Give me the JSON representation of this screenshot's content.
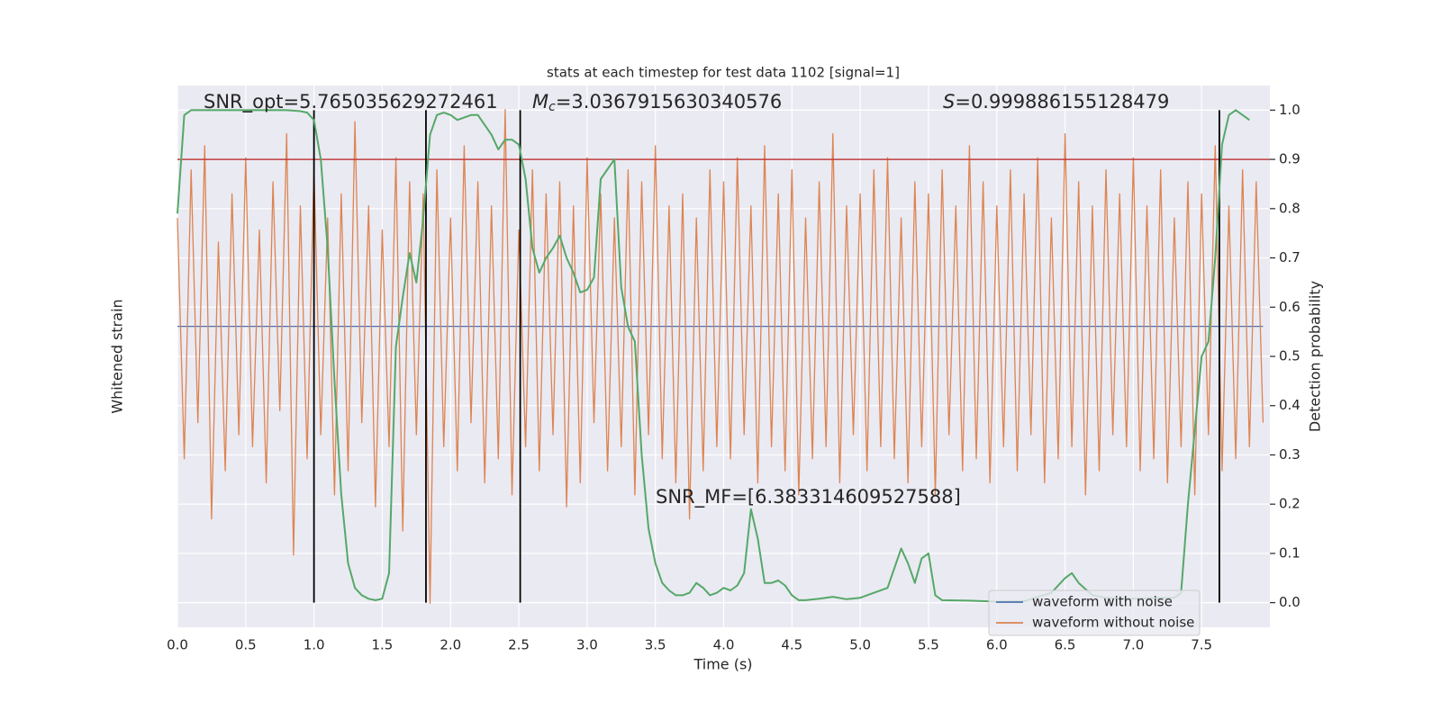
{
  "chart_data": {
    "type": "line",
    "title": "stats at each timestep for test data 1102 [signal=1]",
    "xlabel": "Time (s)",
    "ylabel": "Whitened strain",
    "y2label": "Detection probability",
    "xlim": [
      0,
      8
    ],
    "xticks": [
      {
        "value": 0,
        "label": "0.0"
      },
      0.5,
      {
        "value": 1,
        "label": "1.0"
      },
      1.5,
      {
        "value": 2,
        "label": "2.0"
      },
      2.5,
      {
        "value": 3,
        "label": "3.0"
      },
      3.5,
      {
        "value": 4,
        "label": "4.0"
      },
      4.5,
      {
        "value": 5,
        "label": "5.0"
      },
      5.5,
      {
        "value": 6,
        "label": "6.0"
      },
      6.5,
      {
        "value": 7,
        "label": "7.0"
      },
      7.5
    ],
    "ylim": [
      -2.5,
      2.0
    ],
    "y2lim": [
      -0.05,
      1.05
    ],
    "y2ticks": [
      {
        "value": 0,
        "label": "0.0"
      },
      0.1,
      0.2,
      0.3,
      0.4,
      0.5,
      0.6,
      0.7,
      0.8,
      0.9,
      {
        "value": 1,
        "label": "1.0"
      }
    ],
    "grid": true,
    "legend": "lower right",
    "x": [
      0,
      0.05,
      0.1,
      0.15,
      0.2,
      0.25,
      0.3,
      0.35,
      0.4,
      0.45,
      0.5,
      0.55,
      0.6,
      0.65,
      0.7,
      0.75,
      0.8,
      0.85,
      0.9,
      0.95,
      1,
      1.05,
      1.1,
      1.15,
      1.2,
      1.25,
      1.3,
      1.35,
      1.4,
      1.45,
      1.5,
      1.55,
      1.6,
      1.65,
      1.7,
      1.75,
      1.8,
      1.85,
      1.9,
      1.95,
      2,
      2.05,
      2.1,
      2.15,
      2.2,
      2.25,
      2.3,
      2.35,
      2.4,
      2.45,
      2.5,
      2.55,
      2.6,
      2.65,
      2.7,
      2.75,
      2.8,
      2.85,
      2.9,
      2.95,
      3,
      3.05,
      3.1,
      3.15,
      3.2,
      3.25,
      3.3,
      3.35,
      3.4,
      3.45,
      3.5,
      3.55,
      3.6,
      3.65,
      3.7,
      3.75,
      3.8,
      3.85,
      3.9,
      3.95,
      4,
      4.05,
      4.1,
      4.15,
      4.2,
      4.25,
      4.3,
      4.35,
      4.4,
      4.45,
      4.5,
      4.55,
      4.6,
      4.65,
      4.7,
      4.75,
      4.8,
      4.85,
      4.9,
      4.95,
      5,
      5.05,
      5.1,
      5.15,
      5.2,
      5.25,
      5.3,
      5.35,
      5.4,
      5.45,
      5.5,
      5.55,
      5.6,
      5.65,
      5.7,
      5.75,
      5.8,
      5.85,
      5.9,
      5.95,
      6,
      6.05,
      6.1,
      6.15,
      6.2,
      6.25,
      6.3,
      6.35,
      6.4,
      6.45,
      6.5,
      6.55,
      6.6,
      6.65,
      6.7,
      6.75,
      6.8,
      6.85,
      6.9,
      6.95,
      7,
      7.05,
      7.1,
      7.15,
      7.2,
      7.25,
      7.3,
      7.35,
      7.4,
      7.45,
      7.5,
      7.55,
      7.6,
      7.65,
      7.7,
      7.75,
      7.8,
      7.85,
      7.9,
      7.95
    ],
    "series": [
      {
        "name": "waveform with noise",
        "color": "#4c72b0",
        "values": [
          0,
          0,
          0,
          0,
          0,
          0,
          0,
          0,
          0,
          0,
          0,
          0,
          0,
          0,
          0,
          0,
          0,
          0,
          0,
          0,
          0,
          0,
          0,
          0,
          0,
          0,
          0,
          0,
          0,
          0,
          0,
          0,
          0,
          0,
          0,
          0,
          0,
          0,
          0,
          0,
          0,
          0,
          0,
          0,
          0,
          0,
          0,
          0,
          0,
          0,
          0,
          0,
          0,
          0,
          0,
          0,
          0,
          0,
          0,
          0,
          0,
          0,
          0,
          0,
          0,
          0,
          0,
          0,
          0,
          0,
          0,
          0,
          0,
          0,
          0,
          0,
          0,
          0,
          0,
          0,
          0,
          0,
          0,
          0,
          0,
          0,
          0,
          0,
          0,
          0,
          0,
          0,
          0,
          0,
          0,
          0,
          0,
          0,
          0,
          0,
          0,
          0,
          0,
          0,
          0,
          0,
          0,
          0,
          0,
          0,
          0,
          0,
          0,
          0,
          0,
          0,
          0,
          0,
          0,
          0,
          0,
          0,
          0,
          0,
          0,
          0,
          0,
          0,
          0,
          0,
          0,
          0,
          0,
          0,
          0,
          0,
          0,
          0,
          0,
          0,
          0,
          0,
          0,
          0,
          0,
          0,
          0,
          0,
          0,
          0,
          0,
          0,
          0,
          0,
          0,
          0,
          0,
          0,
          0,
          0
        ]
      },
      {
        "name": "waveform without noise",
        "color": "#dd8452",
        "values": [
          0.9,
          -1.1,
          1.3,
          -0.8,
          1.5,
          -1.6,
          0.7,
          -1.2,
          1.1,
          -0.9,
          1.4,
          -1.0,
          0.8,
          -1.3,
          1.2,
          -0.7,
          1.6,
          -1.9,
          1.0,
          -1.1,
          1.3,
          -0.9,
          0.9,
          -1.4,
          1.1,
          -1.2,
          1.7,
          -0.8,
          1.0,
          -1.5,
          0.8,
          -1.0,
          1.4,
          -1.7,
          1.2,
          -0.9,
          1.1,
          -2.3,
          1.3,
          -1.0,
          0.9,
          -1.2,
          1.5,
          -0.8,
          1.2,
          -1.3,
          1.0,
          -1.1,
          1.8,
          -1.4,
          0.8,
          -1.0,
          1.3,
          -1.2,
          1.1,
          -0.9,
          1.2,
          -1.5,
          1.0,
          -1.3,
          1.4,
          -0.8,
          1.1,
          -1.2,
          0.9,
          -1.0,
          1.3,
          -1.4,
          1.2,
          -0.9,
          1.5,
          -1.1,
          1.0,
          -1.3,
          1.1,
          -1.6,
          0.9,
          -1.2,
          1.3,
          -1.0,
          1.2,
          -1.1,
          1.4,
          -0.9,
          1.0,
          -1.3,
          1.5,
          -1.0,
          1.1,
          -1.2,
          1.3,
          -1.4,
          0.9,
          -1.1,
          1.2,
          -1.0,
          1.6,
          -1.3,
          1.0,
          -0.9,
          1.1,
          -1.2,
          1.3,
          -1.0,
          1.4,
          -1.1,
          0.9,
          -1.3,
          1.2,
          -1.0,
          1.1,
          -1.4,
          1.3,
          -0.9,
          1.0,
          -1.2,
          1.5,
          -1.1,
          1.2,
          -1.3,
          1.0,
          -1.0,
          1.3,
          -1.2,
          1.1,
          -0.9,
          1.4,
          -1.3,
          0.9,
          -1.1,
          1.6,
          -1.0,
          1.2,
          -1.4,
          1.0,
          -1.2,
          1.3,
          -0.9,
          1.1,
          -1.0,
          1.4,
          -1.2,
          1.0,
          -1.1,
          1.3,
          -1.3,
          0.9,
          -1.0,
          1.2,
          -1.4,
          1.1,
          -0.9,
          1.5,
          -1.2,
          1.0,
          -1.1,
          1.3,
          -1.0,
          1.2,
          -0.8
        ]
      }
    ],
    "probability": {
      "color": "#55a868",
      "axis": "y2",
      "x": [
        0,
        0.05,
        0.1,
        0.2,
        0.3,
        0.4,
        0.5,
        0.6,
        0.7,
        0.8,
        0.9,
        0.95,
        1,
        1.05,
        1.1,
        1.15,
        1.2,
        1.25,
        1.3,
        1.35,
        1.4,
        1.45,
        1.5,
        1.55,
        1.6,
        1.65,
        1.7,
        1.75,
        1.8,
        1.85,
        1.9,
        1.95,
        2,
        2.05,
        2.1,
        2.15,
        2.2,
        2.25,
        2.3,
        2.35,
        2.4,
        2.45,
        2.5,
        2.55,
        2.6,
        2.65,
        2.7,
        2.75,
        2.8,
        2.85,
        2.9,
        2.95,
        3,
        3.05,
        3.1,
        3.15,
        3.2,
        3.25,
        3.3,
        3.35,
        3.4,
        3.45,
        3.5,
        3.55,
        3.6,
        3.65,
        3.7,
        3.75,
        3.8,
        3.85,
        3.9,
        3.95,
        4,
        4.05,
        4.1,
        4.15,
        4.2,
        4.25,
        4.3,
        4.35,
        4.4,
        4.45,
        4.5,
        4.55,
        4.6,
        4.7,
        4.8,
        4.9,
        5,
        5.1,
        5.2,
        5.3,
        5.35,
        5.4,
        5.45,
        5.5,
        5.55,
        5.6,
        5.8,
        6,
        6.2,
        6.4,
        6.5,
        6.55,
        6.6,
        6.7,
        6.8,
        7,
        7.2,
        7.3,
        7.35,
        7.4,
        7.45,
        7.5,
        7.55,
        7.6,
        7.65,
        7.7,
        7.75,
        7.8,
        7.85
      ],
      "values": [
        0.79,
        0.99,
        1.0,
        1.0,
        1.0,
        1.0,
        1.0,
        1.0,
        1.0,
        1.0,
        0.998,
        0.995,
        0.98,
        0.9,
        0.72,
        0.45,
        0.22,
        0.08,
        0.03,
        0.015,
        0.008,
        0.005,
        0.008,
        0.06,
        0.52,
        0.62,
        0.71,
        0.65,
        0.78,
        0.95,
        0.99,
        0.995,
        0.99,
        0.98,
        0.985,
        0.99,
        0.99,
        0.97,
        0.95,
        0.92,
        0.94,
        0.94,
        0.93,
        0.86,
        0.72,
        0.67,
        0.7,
        0.72,
        0.745,
        0.7,
        0.67,
        0.63,
        0.635,
        0.66,
        0.86,
        0.88,
        0.9,
        0.64,
        0.56,
        0.53,
        0.3,
        0.15,
        0.08,
        0.04,
        0.025,
        0.015,
        0.015,
        0.02,
        0.04,
        0.03,
        0.015,
        0.02,
        0.03,
        0.025,
        0.035,
        0.06,
        0.19,
        0.13,
        0.04,
        0.04,
        0.045,
        0.035,
        0.015,
        0.005,
        0.005,
        0.008,
        0.012,
        0.007,
        0.01,
        0.02,
        0.03,
        0.11,
        0.08,
        0.04,
        0.09,
        0.1,
        0.015,
        0.005,
        0.004,
        0.002,
        0.003,
        0.02,
        0.05,
        0.06,
        0.04,
        0.015,
        0.01,
        0.008,
        0.01,
        0.01,
        0.02,
        0.2,
        0.35,
        0.5,
        0.53,
        0.7,
        0.93,
        0.99,
        1.0,
        0.99,
        0.98
      ]
    },
    "threshold": {
      "value": 0.9,
      "color": "#c03d3e",
      "axis": "y2"
    },
    "vlines": {
      "x": [
        1.0,
        1.82,
        2.51,
        7.63
      ],
      "color": "#000000"
    },
    "annotations": [
      {
        "text": "SNR_opt=5.765035629272461"
      },
      {
        "symbol": "M",
        "subscript": "c",
        "text": "=3.0367915630340576"
      },
      {
        "symbol": "S",
        "text": "=0.999886155128479"
      },
      {
        "text": "SNR_MF=[6.383314609527588]"
      }
    ]
  }
}
